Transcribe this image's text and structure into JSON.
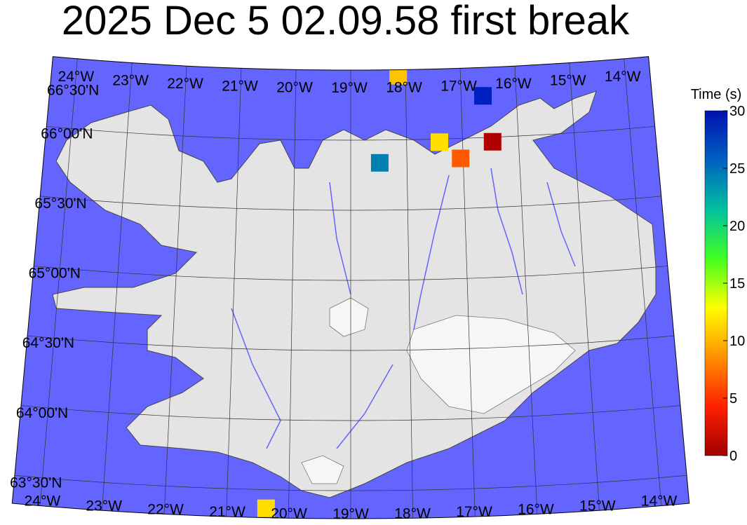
{
  "title": "2025 Dec 5 02.09.58 first break",
  "map": {
    "projection": "conic",
    "lon_range": [
      -24.45,
      -13.55
    ],
    "lat_range": [
      63.3,
      66.5
    ],
    "ocean_color": "#6464ff",
    "land_color": "#e4e4e4",
    "lon_labels_top": [
      "24°W",
      "23°W",
      "22°W",
      "21°W",
      "20°W",
      "19°W",
      "18°W",
      "17°W",
      "16°W",
      "15°W",
      "14°W"
    ],
    "lon_labels_bottom": [
      "24°W",
      "23°W",
      "22°W",
      "21°W",
      "20°W",
      "19°W",
      "18°W",
      "17°W",
      "16°W",
      "15°W",
      "14°W"
    ],
    "lon_values": [
      -24,
      -23,
      -22,
      -21,
      -20,
      -19,
      -18,
      -17,
      -16,
      -15,
      -14
    ],
    "lat_labels": [
      "63°30'N",
      "64°00'N",
      "64°30'N",
      "65°00'N",
      "65°30'N",
      "66°00'N",
      "66°30'N"
    ],
    "lat_values": [
      63.5,
      64,
      64.5,
      65,
      65.5,
      66,
      66.5
    ]
  },
  "stations": [
    {
      "lat": 66.46,
      "lon": -18.14,
      "time": 13,
      "color": "#ffc400"
    },
    {
      "lat": 66.3,
      "lon": -16.61,
      "time": 28,
      "color": "#0020c0"
    },
    {
      "lat": 65.98,
      "lon": -17.42,
      "time": 14,
      "color": "#ffde00"
    },
    {
      "lat": 65.97,
      "lon": -16.47,
      "time": 1,
      "color": "#b00000"
    },
    {
      "lat": 65.86,
      "lon": -17.05,
      "time": 7,
      "color": "#ff5a00"
    },
    {
      "lat": 65.84,
      "lon": -18.49,
      "time": 24,
      "color": "#0080b0"
    },
    {
      "lat": 63.37,
      "lon": -20.37,
      "time": 14,
      "color": "#ffde00"
    }
  ],
  "colorbar": {
    "title": "Time (s)",
    "range": [
      0,
      30
    ],
    "ticks": [
      "0",
      "5",
      "10",
      "15",
      "20",
      "25",
      "30"
    ],
    "tick_values": [
      0,
      5,
      10,
      15,
      20,
      25,
      30
    ],
    "colormap": "jet-reversed",
    "stops": [
      "#a00000",
      "#ff2000",
      "#ff9000",
      "#ffff00",
      "#40ff20",
      "#00c0a0",
      "#0060c0",
      "#0010b0"
    ]
  }
}
